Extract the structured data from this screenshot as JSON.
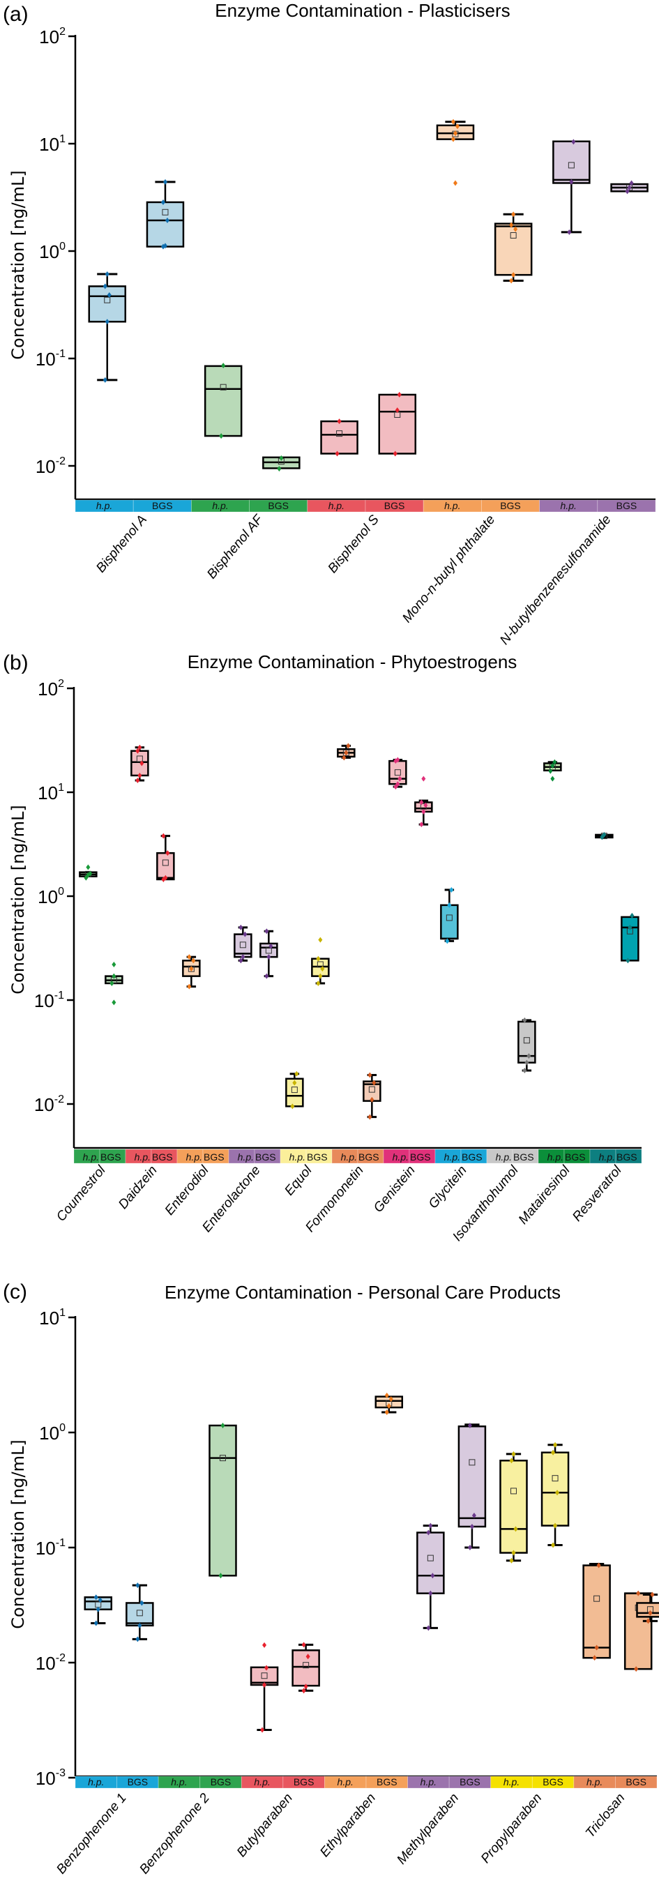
{
  "figure": {
    "panels": [
      "a",
      "b",
      "c"
    ]
  },
  "chart_data": [
    {
      "type": "box",
      "panel_label": "(a)",
      "title": "Enzyme Contamination - Plasticisers",
      "ylabel": "Concentration [ng/mL]",
      "xlabel": "",
      "yscale": "log",
      "ylim": [
        0.005,
        100
      ],
      "yticks": [
        {
          "exp": "2"
        },
        {
          "exp": "1"
        },
        {
          "exp": "0"
        },
        {
          "exp": "-1"
        },
        {
          "exp": "-2"
        }
      ],
      "ytick_values": [
        100,
        10,
        1,
        0.1,
        0.01
      ],
      "strip_labels": [
        "h.p.",
        "BGS"
      ],
      "categories": [
        "Bisphenol A",
        "Bisphenol AF",
        "Bisphenol S",
        "Mono-n-butyl phthalate",
        "N-butylbenzenesulfonamide"
      ],
      "category_colors": [
        "#1aa6d8",
        "#2ea44f",
        "#e8565f",
        "#f4a05a",
        "#9b73ad"
      ],
      "box_fill_colors": [
        "#b6d7e6",
        "#b9dab8",
        "#f2bcc1",
        "#f9d6b8",
        "#d8cade"
      ],
      "point_colors": [
        "#0f6fb0",
        "#1a9a3a",
        "#e8222e",
        "#f07a1a",
        "#6b3a8c"
      ],
      "series": [
        {
          "category": "Bisphenol A",
          "group": "h.p.",
          "whislo": 0.063,
          "q1": 0.22,
          "med": 0.38,
          "q3": 0.47,
          "whishi": 0.61,
          "mean": 0.35,
          "points": [
            0.063,
            0.22,
            0.39,
            0.47,
            0.61
          ]
        },
        {
          "category": "Bisphenol A",
          "group": "BGS",
          "whislo": 1.1,
          "q1": 1.1,
          "med": 1.93,
          "q3": 2.85,
          "whishi": 4.4,
          "mean": 2.3,
          "points": [
            1.1,
            1.12,
            1.93,
            2.85,
            4.4
          ]
        },
        {
          "category": "Bisphenol AF",
          "group": "h.p.",
          "whislo": 0.019,
          "q1": 0.019,
          "med": 0.052,
          "q3": 0.085,
          "whishi": 0.085,
          "mean": 0.054,
          "points": [
            0.019,
            0.086
          ]
        },
        {
          "category": "Bisphenol AF",
          "group": "BGS",
          "whislo": 0.0095,
          "q1": 0.0095,
          "med": 0.0108,
          "q3": 0.012,
          "whishi": 0.012,
          "mean": 0.011,
          "points": [
            0.0094,
            0.0118
          ]
        },
        {
          "category": "Bisphenol S",
          "group": "h.p.",
          "whislo": 0.013,
          "q1": 0.013,
          "med": 0.0195,
          "q3": 0.026,
          "whishi": 0.026,
          "mean": 0.02,
          "points": [
            0.013,
            0.026
          ]
        },
        {
          "category": "Bisphenol S",
          "group": "BGS",
          "whislo": 0.013,
          "q1": 0.013,
          "med": 0.032,
          "q3": 0.046,
          "whishi": 0.046,
          "mean": 0.03,
          "points": [
            0.013,
            0.033,
            0.046
          ]
        },
        {
          "category": "Mono-n-butyl phthalate",
          "group": "h.p.",
          "whislo": 11,
          "q1": 11,
          "med": 12.5,
          "q3": 14.8,
          "whishi": 16,
          "mean": 12.3,
          "points": [
            11,
            12.5,
            14.5,
            16
          ],
          "outliers": [
            4.3
          ]
        },
        {
          "category": "Mono-n-butyl phthalate",
          "group": "BGS",
          "whislo": 0.53,
          "q1": 0.6,
          "med": 1.7,
          "q3": 1.8,
          "whishi": 2.2,
          "mean": 1.4,
          "points": [
            0.53,
            0.6,
            1.6,
            1.75,
            2.2
          ]
        },
        {
          "category": "N-butylbenzenesulfonamide",
          "group": "h.p.",
          "whislo": 1.5,
          "q1": 4.3,
          "med": 4.6,
          "q3": 10.5,
          "whishi": 10.5,
          "mean": 6.3,
          "points": [
            1.5,
            4.4,
            10.4
          ]
        },
        {
          "category": "N-butylbenzenesulfonamide",
          "group": "BGS",
          "whislo": 3.6,
          "q1": 3.6,
          "med": 3.9,
          "q3": 4.2,
          "whishi": 4.2,
          "mean": 3.9,
          "points": [
            3.6,
            3.9,
            4.3
          ]
        }
      ]
    },
    {
      "type": "box",
      "panel_label": "(b)",
      "title": "Enzyme Contamination - Phytoestrogens",
      "ylabel": "Concentration [ng/mL]",
      "xlabel": "",
      "yscale": "log",
      "ylim": [
        0.0037,
        100
      ],
      "yticks": [
        {
          "exp": "2"
        },
        {
          "exp": "1"
        },
        {
          "exp": "0"
        },
        {
          "exp": "-1"
        },
        {
          "exp": "-2"
        }
      ],
      "ytick_values": [
        100,
        10,
        1,
        0.1,
        0.01
      ],
      "strip_labels": [
        "h.p.",
        "BGS"
      ],
      "categories": [
        "Coumestrol",
        "Daidzein",
        "Enterodiol",
        "Enterolactone",
        "Equol",
        "Formononetin",
        "Genistein",
        "Glycitein",
        "Isoxanthohumol",
        "Matairesinol",
        "Resveratrol"
      ],
      "category_colors": [
        "#2ea44f",
        "#e8565f",
        "#f4a05a",
        "#9b73ad",
        "#fbef9a",
        "#e88a5a",
        "#e0317a",
        "#1aa6d8",
        "#c8c8c8",
        "#0b8f3a",
        "#0d7f80"
      ],
      "box_fill_colors": [
        "#b9dab8",
        "#f2bcc1",
        "#f9d6b8",
        "#d8cade",
        "#f8f0a0",
        "#f3cbb6",
        "#f2bcc1",
        "#55c1d8",
        "#c8c8c8",
        "#c4e3b0",
        "#00a3b0"
      ],
      "point_colors": [
        "#1a9a3a",
        "#e8222e",
        "#f07a1a",
        "#6b3a8c",
        "#c8b400",
        "#d45a20",
        "#e0317a",
        "#1aa6d8",
        "#777777",
        "#0b8f3a",
        "#0d7f80"
      ],
      "series": [
        {
          "category": "Coumestrol",
          "group": "h.p.",
          "whislo": 1.55,
          "q1": 1.55,
          "med": 1.62,
          "q3": 1.7,
          "whishi": 1.7,
          "mean": 1.63,
          "points": [
            1.5,
            1.6,
            1.65
          ],
          "outliers": [
            1.9
          ]
        },
        {
          "category": "Coumestrol",
          "group": "BGS",
          "whislo": 0.145,
          "q1": 0.145,
          "med": 0.155,
          "q3": 0.17,
          "whishi": 0.17,
          "mean": 0.155,
          "points": [
            0.145,
            0.17
          ],
          "outliers": [
            0.22,
            0.095
          ]
        },
        {
          "category": "Daidzein",
          "group": "h.p.",
          "whislo": 13,
          "q1": 14.5,
          "med": 19.5,
          "q3": 25,
          "whishi": 27,
          "mean": 21,
          "points": [
            13,
            14.5,
            19,
            25,
            27
          ]
        },
        {
          "category": "Daidzein",
          "group": "BGS",
          "whislo": 1.45,
          "q1": 1.45,
          "med": 1.5,
          "q3": 2.6,
          "whishi": 3.8,
          "mean": 2.1,
          "points": [
            1.45,
            1.5,
            2.6,
            3.8
          ]
        },
        {
          "category": "Enterodiol",
          "group": "h.p.",
          "whislo": 0.135,
          "q1": 0.17,
          "med": 0.21,
          "q3": 0.24,
          "whishi": 0.26,
          "mean": 0.2,
          "points": [
            0.135,
            0.2,
            0.24,
            0.26
          ]
        },
        {
          "category": "Enterodiol",
          "group": "BGS",
          "whislo": null,
          "q1": null,
          "med": null,
          "q3": null,
          "whishi": null,
          "mean": null,
          "points": []
        },
        {
          "category": "Enterolactone",
          "group": "h.p.",
          "whislo": 0.24,
          "q1": 0.26,
          "med": 0.28,
          "q3": 0.43,
          "whishi": 0.5,
          "mean": 0.34,
          "points": [
            0.24,
            0.26,
            0.43,
            0.5
          ]
        },
        {
          "category": "Enterolactone",
          "group": "BGS",
          "whislo": 0.17,
          "q1": 0.26,
          "med": 0.32,
          "q3": 0.35,
          "whishi": 0.46,
          "mean": 0.3,
          "points": [
            0.17,
            0.26,
            0.33,
            0.46
          ]
        },
        {
          "category": "Equol",
          "group": "h.p.",
          "whislo": 0.0095,
          "q1": 0.0095,
          "med": 0.012,
          "q3": 0.0175,
          "whishi": 0.0195,
          "mean": 0.0137,
          "points": [
            0.0095,
            0.016,
            0.0195
          ]
        },
        {
          "category": "Equol",
          "group": "BGS",
          "whislo": 0.145,
          "q1": 0.17,
          "med": 0.21,
          "q3": 0.25,
          "whishi": 0.25,
          "mean": 0.22,
          "points": [
            0.145,
            0.17,
            0.2,
            0.25
          ],
          "outliers": [
            0.38
          ]
        },
        {
          "category": "Formononetin",
          "group": "h.p.",
          "whislo": 21.5,
          "q1": 22,
          "med": 24,
          "q3": 26,
          "whishi": 28,
          "mean": 24,
          "points": [
            21.5,
            24,
            28
          ]
        },
        {
          "category": "Formononetin",
          "group": "BGS",
          "whislo": 0.0075,
          "q1": 0.0107,
          "med": 0.0155,
          "q3": 0.0165,
          "whishi": 0.019,
          "mean": 0.0138,
          "points": [
            0.0075,
            0.011,
            0.016,
            0.019
          ]
        },
        {
          "category": "Genistein",
          "group": "h.p.",
          "whislo": 11.3,
          "q1": 12,
          "med": 13.5,
          "q3": 20,
          "whishi": 20.5,
          "mean": 15.5,
          "points": [
            11.3,
            12,
            13.5,
            20,
            20.5
          ]
        },
        {
          "category": "Genistein",
          "group": "BGS",
          "whislo": 4.9,
          "q1": 6.5,
          "med": 7,
          "q3": 8,
          "whishi": 8.3,
          "mean": 7.3,
          "points": [
            4.9,
            6.5,
            7.5,
            8
          ],
          "outliers": [
            13.5
          ]
        },
        {
          "category": "Glycitein",
          "group": "h.p.",
          "whislo": 0.37,
          "q1": 0.39,
          "med": 0.39,
          "q3": 0.82,
          "whishi": 1.15,
          "mean": 0.62,
          "points": [
            0.37,
            0.82,
            1.15
          ]
        },
        {
          "category": "Glycitein",
          "group": "BGS",
          "whislo": null,
          "q1": null,
          "med": null,
          "q3": null,
          "whishi": null,
          "mean": null,
          "points": []
        },
        {
          "category": "Isoxanthohumol",
          "group": "h.p.",
          "whislo": null,
          "q1": null,
          "med": null,
          "q3": null,
          "whishi": null,
          "mean": null,
          "points": []
        },
        {
          "category": "Isoxanthohumol",
          "group": "BGS",
          "whislo": 0.021,
          "q1": 0.025,
          "med": 0.029,
          "q3": 0.062,
          "whishi": 0.064,
          "mean": 0.041,
          "points": [
            0.021,
            0.025,
            0.029,
            0.064
          ]
        },
        {
          "category": "Matairesinol",
          "group": "h.p.",
          "whislo": 16,
          "q1": 16.2,
          "med": 17.5,
          "q3": 19,
          "whishi": 19.5,
          "mean": 17.5,
          "points": [
            16,
            18,
            19.5
          ],
          "outliers": [
            13.5
          ]
        },
        {
          "category": "Matairesinol",
          "group": "BGS",
          "whislo": null,
          "q1": null,
          "med": null,
          "q3": null,
          "whishi": null,
          "mean": null,
          "points": []
        },
        {
          "category": "Resveratrol",
          "group": "h.p.",
          "whislo": 3.75,
          "q1": 3.75,
          "med": 3.8,
          "q3": 3.9,
          "whishi": 3.9,
          "mean": 3.8,
          "points": [
            3.7,
            3.9
          ]
        },
        {
          "category": "Resveratrol",
          "group": "BGS",
          "whislo": 0.24,
          "q1": 0.24,
          "med": 0.5,
          "q3": 0.63,
          "whishi": 0.63,
          "mean": 0.46,
          "points": [
            0.24,
            0.5,
            0.65
          ]
        }
      ]
    },
    {
      "type": "box",
      "panel_label": "(c)",
      "title": "Enzyme Contamination - Personal Care Products",
      "ylabel": "Concentration [ng/mL]",
      "xlabel": "",
      "yscale": "log",
      "ylim": [
        0.001,
        10
      ],
      "yticks": [
        {
          "exp": "1"
        },
        {
          "exp": "0"
        },
        {
          "exp": "-1"
        },
        {
          "exp": "-2"
        },
        {
          "exp": "-3"
        }
      ],
      "ytick_values": [
        10,
        1,
        0.1,
        0.01,
        0.001
      ],
      "strip_labels": [
        "h.p.",
        "BGS"
      ],
      "categories": [
        "Benzophenone 1",
        "Benzophenone 2",
        "Butylparaben",
        "Ethylparaben",
        "Methylparaben",
        "Propylparaben",
        "Triclosan"
      ],
      "category_colors": [
        "#1aa6d8",
        "#2ea44f",
        "#e8565f",
        "#f4a05a",
        "#9b73ad",
        "#f5e100",
        "#e88a5a"
      ],
      "box_fill_colors": [
        "#b6d7e6",
        "#b9dab8",
        "#f2bcc1",
        "#f9d6b8",
        "#d8cade",
        "#f8f0a0",
        "#f2bc94"
      ],
      "point_colors": [
        "#0f6fb0",
        "#1a9a3a",
        "#e8222e",
        "#f07a1a",
        "#6b3a8c",
        "#c8b400",
        "#d45a20"
      ],
      "series": [
        {
          "category": "Benzophenone 1",
          "group": "h.p.",
          "whislo": 0.022,
          "q1": 0.029,
          "med": 0.034,
          "q3": 0.037,
          "whishi": 0.037,
          "mean": 0.032,
          "points": [
            0.022,
            0.029,
            0.035,
            0.037
          ]
        },
        {
          "category": "Benzophenone 1",
          "group": "BGS",
          "whislo": 0.016,
          "q1": 0.021,
          "med": 0.022,
          "q3": 0.033,
          "whishi": 0.047,
          "mean": 0.027,
          "points": [
            0.016,
            0.021,
            0.033,
            0.047
          ]
        },
        {
          "category": "Benzophenone 2",
          "group": "h.p.",
          "whislo": null,
          "q1": null,
          "med": null,
          "q3": null,
          "whishi": null,
          "mean": null,
          "points": []
        },
        {
          "category": "Benzophenone 2",
          "group": "BGS",
          "whislo": 0.057,
          "q1": 0.057,
          "med": 0.6,
          "q3": 1.15,
          "whishi": 1.15,
          "mean": 0.6,
          "points": [
            0.057,
            1.15
          ]
        },
        {
          "category": "Butylparaben",
          "group": "h.p.",
          "whislo": 0.0026,
          "q1": 0.0064,
          "med": 0.0067,
          "q3": 0.0091,
          "whishi": 0.0091,
          "mean": 0.0077,
          "points": [
            0.0026,
            0.0064,
            0.009
          ],
          "outliers": [
            0.0142
          ]
        },
        {
          "category": "Butylparaben",
          "group": "BGS",
          "whislo": 0.0057,
          "q1": 0.0063,
          "med": 0.0092,
          "q3": 0.0128,
          "whishi": 0.0143,
          "mean": 0.0095,
          "points": [
            0.0057,
            0.0062,
            0.0113,
            0.0143
          ]
        },
        {
          "category": "Ethylparaben",
          "group": "h.p.",
          "whislo": null,
          "q1": null,
          "med": null,
          "q3": null,
          "whishi": null,
          "mean": null,
          "points": []
        },
        {
          "category": "Ethylparaben",
          "group": "BGS",
          "whislo": 1.5,
          "q1": 1.65,
          "med": 1.88,
          "q3": 2.05,
          "whishi": 2.05,
          "mean": 1.8,
          "points": [
            1.5,
            1.7,
            1.95,
            2.1
          ]
        },
        {
          "category": "Methylparaben",
          "group": "h.p.",
          "whislo": 0.02,
          "q1": 0.04,
          "med": 0.057,
          "q3": 0.135,
          "whishi": 0.155,
          "mean": 0.081,
          "points": [
            0.02,
            0.04,
            0.057,
            0.135,
            0.155
          ]
        },
        {
          "category": "Methylparaben",
          "group": "BGS",
          "whislo": 0.1,
          "q1": 0.152,
          "med": 0.18,
          "q3": 1.13,
          "whishi": 1.17,
          "mean": 0.55,
          "points": [
            0.1,
            0.152,
            0.19,
            1.15
          ]
        },
        {
          "category": "Propylparaben",
          "group": "h.p.",
          "whislo": 0.077,
          "q1": 0.09,
          "med": 0.145,
          "q3": 0.57,
          "whishi": 0.65,
          "mean": 0.31,
          "points": [
            0.077,
            0.09,
            0.145,
            0.57,
            0.65
          ]
        },
        {
          "category": "Propylparaben",
          "group": "BGS",
          "whislo": 0.105,
          "q1": 0.155,
          "med": 0.3,
          "q3": 0.67,
          "whishi": 0.78,
          "mean": 0.4,
          "points": [
            0.105,
            0.155,
            0.3,
            0.67,
            0.78
          ]
        },
        {
          "category": "Triclosan",
          "group": "h.p.",
          "whislo": 0.011,
          "q1": 0.011,
          "med": 0.0135,
          "q3": 0.07,
          "whishi": 0.072,
          "mean": 0.036,
          "points": [
            0.011,
            0.0135,
            0.07
          ]
        },
        {
          "category": "Triclosan",
          "group": "BGS",
          "whislo": 0.0088,
          "q1": 0.0088,
          "med": 0.04,
          "q3": 0.04,
          "whishi": 0.04,
          "mean": 0.03,
          "points": [
            0.0088,
            0.04
          ]
        }
      ],
      "extra_series_note": "Triclosan BGS box",
      "extra_series": [
        {
          "category": "Triclosan",
          "group": "BGS-2",
          "whislo": 0.023,
          "q1": 0.025,
          "med": 0.027,
          "q3": 0.033,
          "whishi": 0.039,
          "mean": 0.029,
          "points": [
            0.023,
            0.027,
            0.039
          ]
        }
      ]
    }
  ]
}
